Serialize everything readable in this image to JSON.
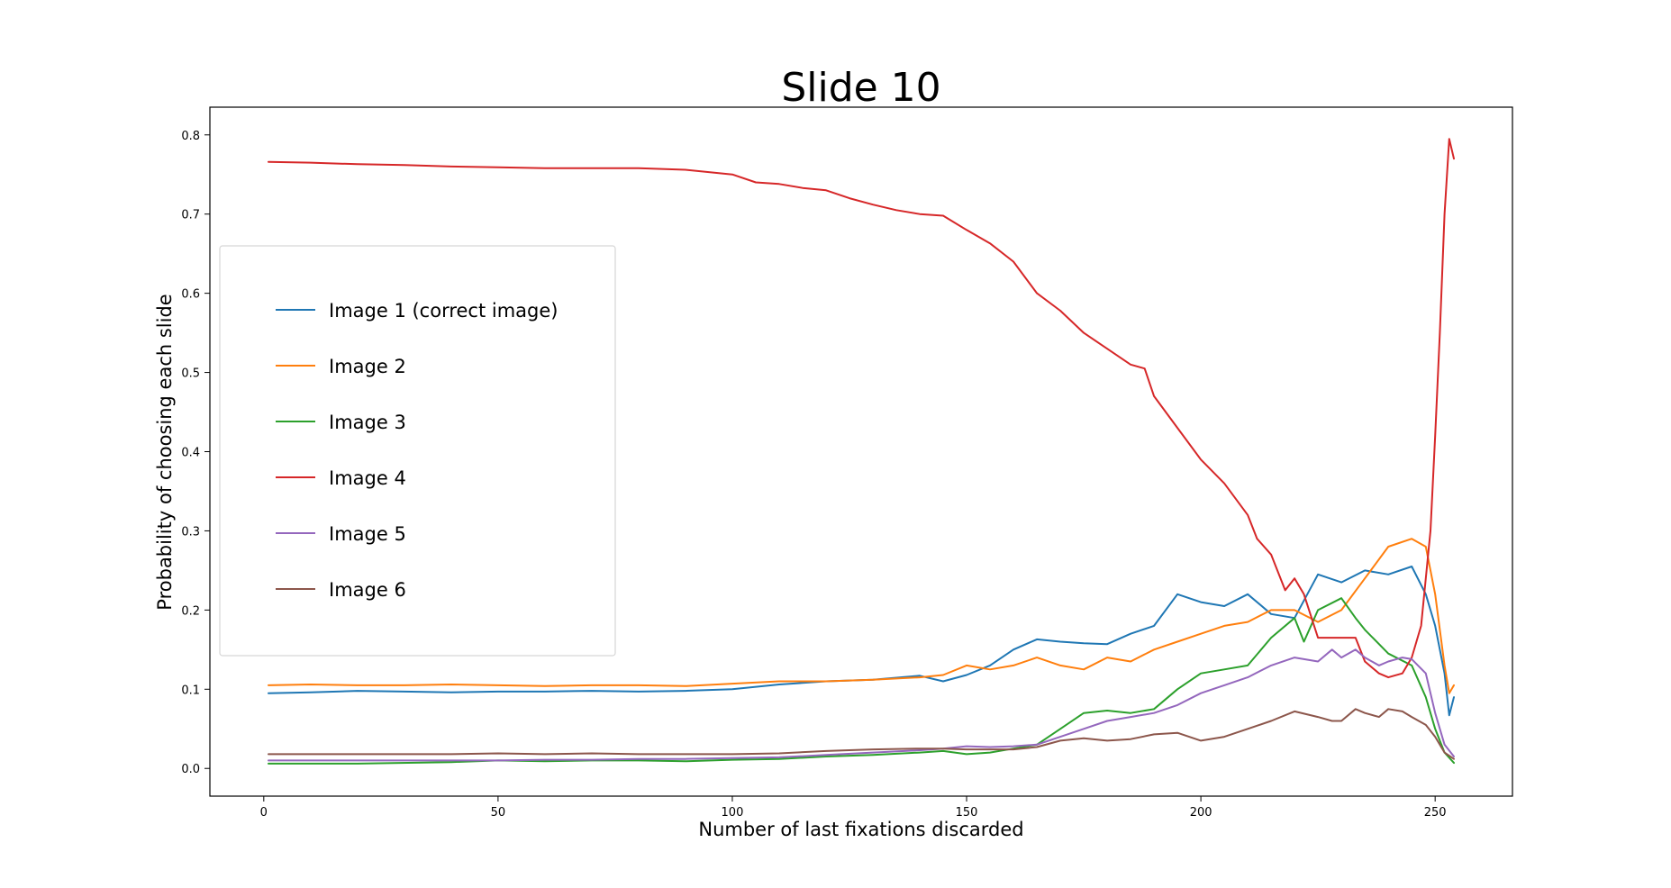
{
  "chart_data": {
    "type": "line",
    "title": "Slide 10",
    "xlabel": "Number of last fixations discarded",
    "ylabel": "Probability of choosing each slide",
    "xlim": [
      -11.5,
      266.5
    ],
    "ylim": [
      -0.035,
      0.835
    ],
    "xticks": [
      0,
      50,
      100,
      150,
      200,
      250
    ],
    "yticks": [
      0.0,
      0.1,
      0.2,
      0.3,
      0.4,
      0.5,
      0.6,
      0.7,
      0.8
    ],
    "xtick_labels": [
      "0",
      "50",
      "100",
      "150",
      "200",
      "250"
    ],
    "ytick_labels": [
      "0.0",
      "0.1",
      "0.2",
      "0.3",
      "0.4",
      "0.5",
      "0.6",
      "0.7",
      "0.8"
    ],
    "grid": false,
    "legend_position": "center-left",
    "series": [
      {
        "name": "Image 1 (correct image)",
        "color": "#1f77b4",
        "points": [
          [
            1,
            0.095
          ],
          [
            10,
            0.096
          ],
          [
            20,
            0.098
          ],
          [
            30,
            0.097
          ],
          [
            40,
            0.096
          ],
          [
            50,
            0.097
          ],
          [
            60,
            0.097
          ],
          [
            70,
            0.098
          ],
          [
            80,
            0.097
          ],
          [
            90,
            0.098
          ],
          [
            100,
            0.1
          ],
          [
            110,
            0.106
          ],
          [
            120,
            0.11
          ],
          [
            130,
            0.112
          ],
          [
            140,
            0.117
          ],
          [
            145,
            0.11
          ],
          [
            150,
            0.118
          ],
          [
            155,
            0.13
          ],
          [
            160,
            0.15
          ],
          [
            165,
            0.163
          ],
          [
            170,
            0.16
          ],
          [
            175,
            0.158
          ],
          [
            180,
            0.157
          ],
          [
            185,
            0.17
          ],
          [
            190,
            0.18
          ],
          [
            195,
            0.22
          ],
          [
            200,
            0.21
          ],
          [
            205,
            0.205
          ],
          [
            210,
            0.22
          ],
          [
            215,
            0.195
          ],
          [
            220,
            0.19
          ],
          [
            225,
            0.245
          ],
          [
            230,
            0.235
          ],
          [
            235,
            0.25
          ],
          [
            240,
            0.245
          ],
          [
            245,
            0.255
          ],
          [
            248,
            0.22
          ],
          [
            250,
            0.18
          ],
          [
            252,
            0.12
          ],
          [
            253,
            0.067
          ],
          [
            254,
            0.09
          ]
        ]
      },
      {
        "name": "Image 2",
        "color": "#ff7f0e",
        "points": [
          [
            1,
            0.105
          ],
          [
            10,
            0.106
          ],
          [
            20,
            0.105
          ],
          [
            30,
            0.105
          ],
          [
            40,
            0.106
          ],
          [
            50,
            0.105
          ],
          [
            60,
            0.104
          ],
          [
            70,
            0.105
          ],
          [
            80,
            0.105
          ],
          [
            90,
            0.104
          ],
          [
            100,
            0.107
          ],
          [
            110,
            0.11
          ],
          [
            120,
            0.11
          ],
          [
            130,
            0.112
          ],
          [
            140,
            0.115
          ],
          [
            145,
            0.118
          ],
          [
            150,
            0.13
          ],
          [
            155,
            0.125
          ],
          [
            160,
            0.13
          ],
          [
            165,
            0.14
          ],
          [
            170,
            0.13
          ],
          [
            175,
            0.125
          ],
          [
            180,
            0.14
          ],
          [
            185,
            0.135
          ],
          [
            190,
            0.15
          ],
          [
            195,
            0.16
          ],
          [
            200,
            0.17
          ],
          [
            205,
            0.18
          ],
          [
            210,
            0.185
          ],
          [
            215,
            0.2
          ],
          [
            220,
            0.2
          ],
          [
            225,
            0.185
          ],
          [
            230,
            0.2
          ],
          [
            235,
            0.24
          ],
          [
            240,
            0.28
          ],
          [
            245,
            0.29
          ],
          [
            248,
            0.28
          ],
          [
            250,
            0.22
          ],
          [
            252,
            0.13
          ],
          [
            253,
            0.095
          ],
          [
            254,
            0.105
          ]
        ]
      },
      {
        "name": "Image 3",
        "color": "#2ca02c",
        "points": [
          [
            1,
            0.006
          ],
          [
            20,
            0.006
          ],
          [
            40,
            0.008
          ],
          [
            50,
            0.01
          ],
          [
            60,
            0.009
          ],
          [
            70,
            0.01
          ],
          [
            80,
            0.01
          ],
          [
            90,
            0.009
          ],
          [
            100,
            0.011
          ],
          [
            110,
            0.012
          ],
          [
            120,
            0.015
          ],
          [
            130,
            0.017
          ],
          [
            140,
            0.02
          ],
          [
            145,
            0.022
          ],
          [
            150,
            0.018
          ],
          [
            155,
            0.02
          ],
          [
            160,
            0.025
          ],
          [
            165,
            0.03
          ],
          [
            170,
            0.05
          ],
          [
            175,
            0.07
          ],
          [
            180,
            0.073
          ],
          [
            185,
            0.07
          ],
          [
            190,
            0.075
          ],
          [
            195,
            0.1
          ],
          [
            200,
            0.12
          ],
          [
            205,
            0.125
          ],
          [
            210,
            0.13
          ],
          [
            215,
            0.165
          ],
          [
            220,
            0.19
          ],
          [
            222,
            0.16
          ],
          [
            225,
            0.2
          ],
          [
            230,
            0.215
          ],
          [
            233,
            0.19
          ],
          [
            235,
            0.175
          ],
          [
            240,
            0.145
          ],
          [
            245,
            0.13
          ],
          [
            248,
            0.09
          ],
          [
            250,
            0.05
          ],
          [
            252,
            0.02
          ],
          [
            254,
            0.007
          ]
        ]
      },
      {
        "name": "Image 4",
        "color": "#d62728",
        "points": [
          [
            1,
            0.766
          ],
          [
            10,
            0.765
          ],
          [
            20,
            0.763
          ],
          [
            30,
            0.762
          ],
          [
            40,
            0.76
          ],
          [
            50,
            0.759
          ],
          [
            60,
            0.758
          ],
          [
            70,
            0.758
          ],
          [
            80,
            0.758
          ],
          [
            90,
            0.756
          ],
          [
            100,
            0.75
          ],
          [
            105,
            0.74
          ],
          [
            110,
            0.738
          ],
          [
            115,
            0.733
          ],
          [
            120,
            0.73
          ],
          [
            125,
            0.72
          ],
          [
            130,
            0.712
          ],
          [
            135,
            0.705
          ],
          [
            140,
            0.7
          ],
          [
            145,
            0.698
          ],
          [
            150,
            0.68
          ],
          [
            155,
            0.663
          ],
          [
            160,
            0.64
          ],
          [
            165,
            0.6
          ],
          [
            170,
            0.578
          ],
          [
            175,
            0.55
          ],
          [
            180,
            0.53
          ],
          [
            185,
            0.51
          ],
          [
            188,
            0.505
          ],
          [
            190,
            0.47
          ],
          [
            195,
            0.43
          ],
          [
            200,
            0.39
          ],
          [
            205,
            0.36
          ],
          [
            210,
            0.32
          ],
          [
            212,
            0.29
          ],
          [
            215,
            0.27
          ],
          [
            218,
            0.225
          ],
          [
            220,
            0.24
          ],
          [
            222,
            0.22
          ],
          [
            225,
            0.165
          ],
          [
            230,
            0.165
          ],
          [
            233,
            0.165
          ],
          [
            235,
            0.135
          ],
          [
            238,
            0.12
          ],
          [
            240,
            0.115
          ],
          [
            243,
            0.12
          ],
          [
            245,
            0.14
          ],
          [
            247,
            0.18
          ],
          [
            249,
            0.3
          ],
          [
            250,
            0.42
          ],
          [
            251,
            0.55
          ],
          [
            252,
            0.7
          ],
          [
            253,
            0.795
          ],
          [
            254,
            0.77
          ]
        ]
      },
      {
        "name": "Image 5",
        "color": "#9467bd",
        "points": [
          [
            1,
            0.01
          ],
          [
            20,
            0.01
          ],
          [
            40,
            0.01
          ],
          [
            50,
            0.01
          ],
          [
            60,
            0.011
          ],
          [
            70,
            0.011
          ],
          [
            80,
            0.012
          ],
          [
            90,
            0.012
          ],
          [
            100,
            0.013
          ],
          [
            110,
            0.014
          ],
          [
            120,
            0.017
          ],
          [
            130,
            0.02
          ],
          [
            140,
            0.023
          ],
          [
            145,
            0.025
          ],
          [
            150,
            0.028
          ],
          [
            155,
            0.027
          ],
          [
            160,
            0.028
          ],
          [
            165,
            0.03
          ],
          [
            170,
            0.04
          ],
          [
            175,
            0.05
          ],
          [
            180,
            0.06
          ],
          [
            185,
            0.065
          ],
          [
            190,
            0.07
          ],
          [
            195,
            0.08
          ],
          [
            200,
            0.095
          ],
          [
            205,
            0.105
          ],
          [
            210,
            0.115
          ],
          [
            215,
            0.13
          ],
          [
            220,
            0.14
          ],
          [
            225,
            0.135
          ],
          [
            228,
            0.15
          ],
          [
            230,
            0.14
          ],
          [
            233,
            0.15
          ],
          [
            235,
            0.14
          ],
          [
            238,
            0.13
          ],
          [
            240,
            0.135
          ],
          [
            243,
            0.14
          ],
          [
            245,
            0.138
          ],
          [
            248,
            0.12
          ],
          [
            250,
            0.07
          ],
          [
            252,
            0.03
          ],
          [
            254,
            0.015
          ]
        ]
      },
      {
        "name": "Image 6",
        "color": "#8c564b",
        "points": [
          [
            1,
            0.018
          ],
          [
            20,
            0.018
          ],
          [
            40,
            0.018
          ],
          [
            50,
            0.019
          ],
          [
            60,
            0.018
          ],
          [
            70,
            0.019
          ],
          [
            80,
            0.018
          ],
          [
            90,
            0.018
          ],
          [
            100,
            0.018
          ],
          [
            110,
            0.019
          ],
          [
            120,
            0.022
          ],
          [
            130,
            0.024
          ],
          [
            140,
            0.025
          ],
          [
            145,
            0.025
          ],
          [
            150,
            0.024
          ],
          [
            155,
            0.024
          ],
          [
            160,
            0.024
          ],
          [
            165,
            0.027
          ],
          [
            170,
            0.035
          ],
          [
            175,
            0.038
          ],
          [
            180,
            0.035
          ],
          [
            185,
            0.037
          ],
          [
            190,
            0.043
          ],
          [
            195,
            0.045
          ],
          [
            200,
            0.035
          ],
          [
            205,
            0.04
          ],
          [
            210,
            0.05
          ],
          [
            215,
            0.06
          ],
          [
            220,
            0.072
          ],
          [
            225,
            0.065
          ],
          [
            228,
            0.06
          ],
          [
            230,
            0.06
          ],
          [
            233,
            0.075
          ],
          [
            235,
            0.07
          ],
          [
            238,
            0.065
          ],
          [
            240,
            0.075
          ],
          [
            243,
            0.072
          ],
          [
            245,
            0.065
          ],
          [
            248,
            0.055
          ],
          [
            250,
            0.04
          ],
          [
            252,
            0.02
          ],
          [
            254,
            0.012
          ]
        ]
      }
    ]
  }
}
